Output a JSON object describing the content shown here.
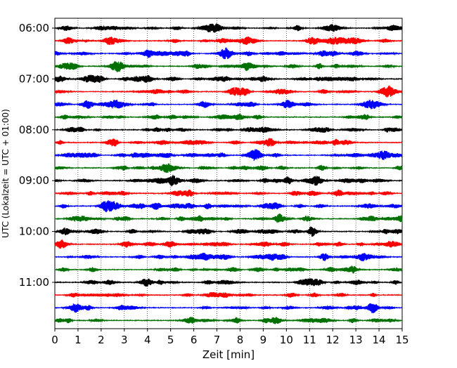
{
  "chart_data": {
    "type": "line",
    "title": "",
    "xlabel": "Zeit  [min]",
    "ylabel": "UTC (Lokalzeit = UTC + 01:00)",
    "xlim": [
      0,
      15
    ],
    "x_ticks": [
      "0",
      "1",
      "2",
      "3",
      "4",
      "5",
      "6",
      "7",
      "8",
      "9",
      "10",
      "11",
      "12",
      "13",
      "14",
      "15"
    ],
    "y_tick_labels": [
      "06:00",
      "07:00",
      "08:00",
      "09:00",
      "10:00",
      "11:00"
    ],
    "trace_interval_min": 15,
    "start_time": "06:00",
    "num_traces": 24,
    "trace_colors": [
      "#000000",
      "#ff0000",
      "#0000ff",
      "#007000"
    ],
    "grid": "vertical dotted",
    "events": [
      {
        "trace_start": "08:30",
        "minute": 14.2,
        "note": "larger amplitude burst"
      },
      {
        "trace_start": "09:30",
        "minute": 2.2,
        "note": "larger amplitude burst"
      }
    ]
  }
}
